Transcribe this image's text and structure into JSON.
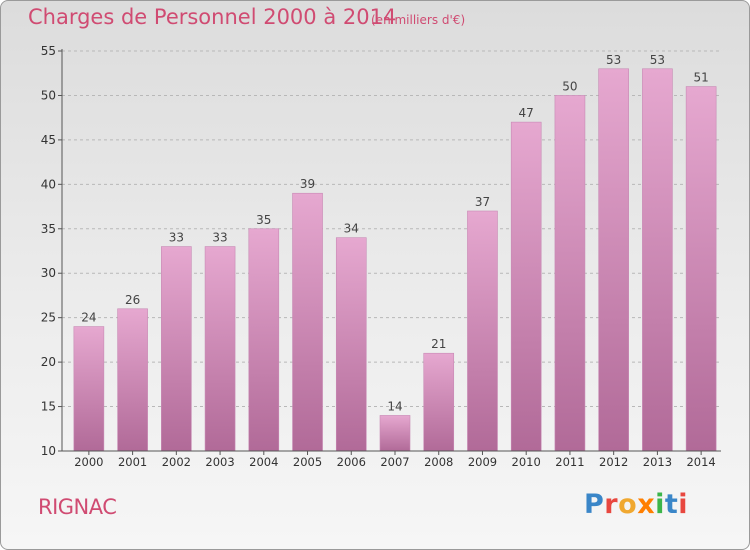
{
  "header": {
    "title": "Charges de Personnel 2000 à 2014",
    "subtitle": "(en milliers d'€)"
  },
  "footer": {
    "commune": "RIGNAC",
    "logo_text": "Proxiti",
    "logo_colors": [
      "#3a86c8",
      "#e8473f",
      "#f0a830",
      "#ff7f00",
      "#3cb54a",
      "#3a86c8",
      "#e8473f"
    ]
  },
  "colors": {
    "accent": "#d04b72",
    "bar_top": "#e6a8d0",
    "bar_bottom": "#b16a98",
    "grid": "#b8b8b8",
    "axis": "#555555"
  },
  "chart_data": {
    "type": "bar",
    "title": "Charges de Personnel 2000 à 2014",
    "subtitle": "(en milliers d'€)",
    "categories": [
      "2000",
      "2001",
      "2002",
      "2003",
      "2004",
      "2005",
      "2006",
      "2007",
      "2008",
      "2009",
      "2010",
      "2011",
      "2012",
      "2013",
      "2014"
    ],
    "values": [
      24,
      26,
      33,
      33,
      35,
      39,
      34,
      14,
      21,
      37,
      47,
      50,
      53,
      53,
      51
    ],
    "ylim": [
      10,
      55
    ],
    "yticks": [
      10,
      15,
      20,
      25,
      30,
      35,
      40,
      45,
      50,
      55
    ],
    "grid": true,
    "data_labels": true,
    "xlabel": "",
    "ylabel": ""
  }
}
